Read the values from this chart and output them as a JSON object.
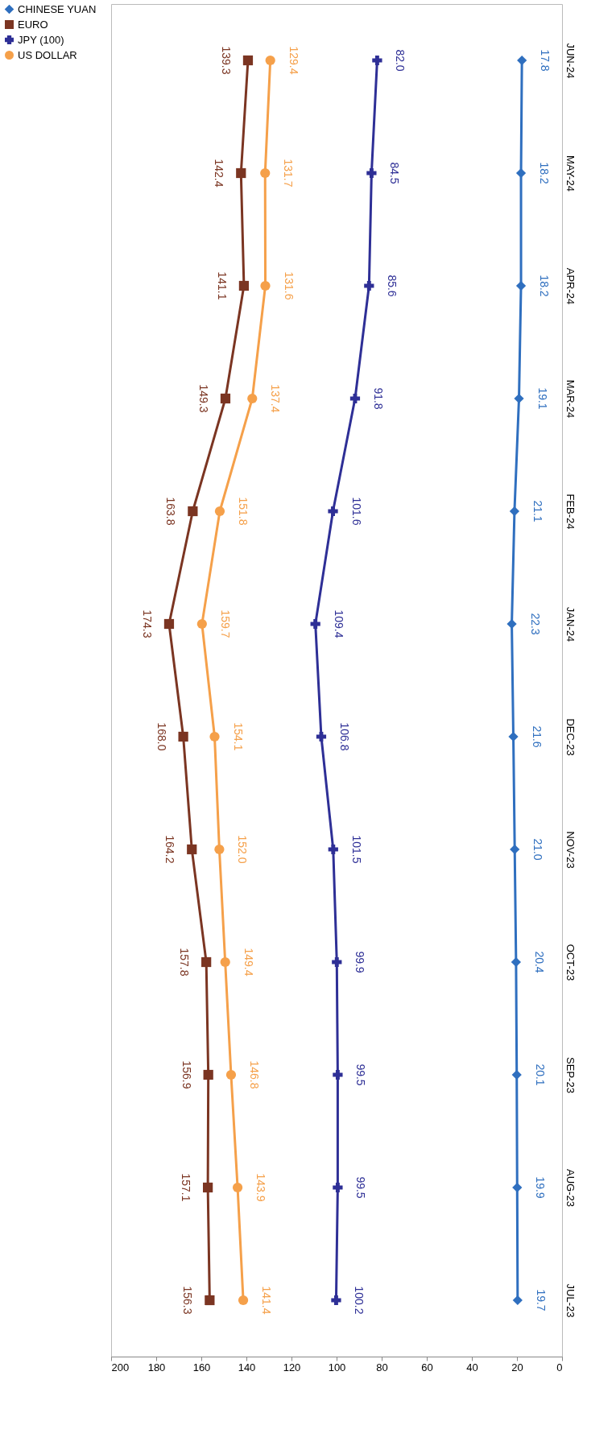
{
  "chart_data": {
    "type": "line",
    "orientation": "horizontal",
    "categories": [
      "JUN-24",
      "MAY-24",
      "APR-24",
      "MAR-24",
      "FEB-24",
      "JAN-24",
      "DEC-23",
      "NOV-23",
      "OCT-23",
      "SEP-23",
      "AUG-23",
      "JUL-23"
    ],
    "series": [
      {
        "name": "CHINESE YUAN",
        "color": "#2f6fbf",
        "marker": "diamond",
        "values": [
          17.8,
          18.2,
          18.2,
          19.1,
          21.1,
          22.3,
          21.6,
          21.0,
          20.4,
          20.1,
          19.9,
          19.7
        ],
        "value_labels": [
          "17.8",
          "18.2",
          "18.2",
          "19.1",
          "21.1",
          "22.3",
          "21.6",
          "21.0",
          "20.4",
          "20.1",
          "19.9",
          "19.7"
        ]
      },
      {
        "name": "EURO",
        "color": "#7b3522",
        "marker": "square",
        "values": [
          139.3,
          142.4,
          141.1,
          149.3,
          163.8,
          174.3,
          168.0,
          164.2,
          157.8,
          156.9,
          157.1,
          156.3
        ],
        "value_labels": [
          "139.3",
          "142.4",
          "141.1",
          "149.3",
          "163.8",
          "174.3",
          "168.0",
          "164.2",
          "157.8",
          "156.9",
          "157.1",
          "156.3"
        ]
      },
      {
        "name": "JPY (100)",
        "color": "#2e2f96",
        "marker": "cross",
        "values": [
          82.0,
          84.5,
          85.6,
          91.8,
          101.6,
          109.4,
          106.8,
          101.5,
          99.9,
          99.5,
          99.5,
          100.2
        ],
        "value_labels": [
          "82.0",
          "84.5",
          "85.6",
          "91.8",
          "101.6",
          "109.4",
          "106.8",
          "101.5",
          "99.9",
          "99.5",
          "99.5",
          "100.2"
        ]
      },
      {
        "name": "US DOLLAR",
        "color": "#f5a04a",
        "marker": "circle",
        "values": [
          129.4,
          131.7,
          131.6,
          137.4,
          151.8,
          159.7,
          154.1,
          152.0,
          149.4,
          146.8,
          143.9,
          141.4
        ],
        "value_labels": [
          "129.4",
          "131.7",
          "131.6",
          "137.4",
          "151.8",
          "159.7",
          "154.1",
          "152.0",
          "149.4",
          "146.8",
          "143.9",
          "141.4"
        ]
      }
    ],
    "xlim": [
      200,
      0
    ],
    "xticks": [
      0,
      20,
      40,
      60,
      80,
      100,
      120,
      140,
      160,
      180,
      200
    ],
    "grid": false,
    "legend": "left"
  }
}
